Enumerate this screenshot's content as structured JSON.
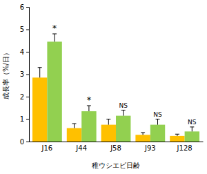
{
  "chart_data": {
    "type": "bar",
    "x_label": "稚ウシエビ日齢",
    "y_label": "成長率（%/日）",
    "categories": [
      "J16",
      "J44",
      "J58",
      "J93",
      "J128"
    ],
    "series": [
      {
        "color": "#ffc000",
        "values": [
          2.85,
          0.6,
          0.75,
          0.3,
          0.25
        ],
        "errors": [
          0.45,
          0.2,
          0.25,
          0.1,
          0.08
        ]
      },
      {
        "color": "#92d050",
        "values": [
          4.45,
          1.35,
          1.15,
          0.75,
          0.45
        ],
        "errors": [
          0.35,
          0.25,
          0.25,
          0.25,
          0.2
        ]
      }
    ],
    "annotations": [
      "*",
      "*",
      "NS",
      "NS",
      "NS"
    ],
    "ylim": [
      0,
      6
    ],
    "yticks": [
      0,
      1,
      2,
      3,
      4,
      5,
      6
    ],
    "grid": false
  }
}
